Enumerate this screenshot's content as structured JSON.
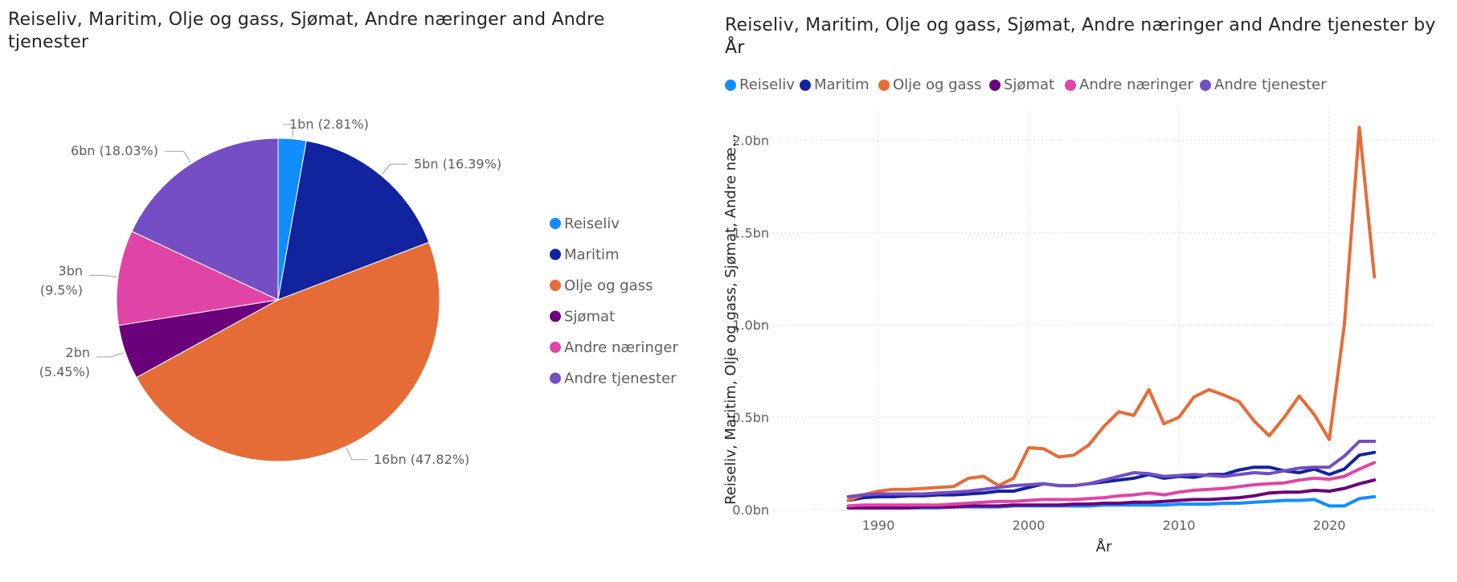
{
  "pie": {
    "title": "Reiseliv, Maritim, Olje og gass, Sjømat, Andre næringer and Andre tjenester"
  },
  "line": {
    "title": "Reiseliv, Maritim, Olje og gass, Sjømat, Andre næringer and Andre tjenester by År",
    "ylabel": "Reiseliv, Maritim, Olje og gass, Sjømat, Andre næ...",
    "xlabel": "År"
  },
  "colors": {
    "Reiseliv": "#118DFF",
    "Maritim": "#12239E",
    "Olje og gass": "#E66C37",
    "Sjømat": "#6B007B",
    "Andre næringer": "#E044A7",
    "Andre tjenester": "#744EC2"
  },
  "chart_data": [
    {
      "type": "pie",
      "title": "Reiseliv, Maritim, Olje og gass, Sjømat, Andre næringer and Andre tjenester",
      "legend_position": "right",
      "slices": [
        {
          "name": "Reiseliv",
          "percent": 2.81,
          "label_value": "1bn",
          "label_pct": "(2.81%)"
        },
        {
          "name": "Maritim",
          "percent": 16.39,
          "label_value": "5bn",
          "label_pct": "(16.39%)"
        },
        {
          "name": "Olje og gass",
          "percent": 47.82,
          "label_value": "16bn",
          "label_pct": "(47.82%)"
        },
        {
          "name": "Sjømat",
          "percent": 5.45,
          "label_value": "2bn",
          "label_pct": "(5.45%)"
        },
        {
          "name": "Andre næringer",
          "percent": 9.5,
          "label_value": "3bn",
          "label_pct": "(9.5%)"
        },
        {
          "name": "Andre tjenester",
          "percent": 18.03,
          "label_value": "6bn",
          "label_pct": "(18.03%)"
        }
      ]
    },
    {
      "type": "line",
      "title": "Reiseliv, Maritim, Olje og gass, Sjømat, Andre næringer and Andre tjenester by År",
      "xlabel": "År",
      "ylabel": "Reiseliv, Maritim, Olje og gass, Sjømat, Andre næ...",
      "xlim": [
        1983,
        2027
      ],
      "ylim": [
        0,
        2.15
      ],
      "xticks": [
        1990,
        2000,
        2010,
        2020
      ],
      "yticks": [
        0,
        0.5,
        1.0,
        1.5,
        2.0
      ],
      "ytick_labels": [
        "0.0bn",
        "0.5bn",
        "1.0bn",
        "1.5bn",
        "2.0bn"
      ],
      "grid": true,
      "legend_position": "top-left",
      "x": [
        1988,
        1989,
        1990,
        1991,
        1992,
        1993,
        1994,
        1995,
        1996,
        1997,
        1998,
        1999,
        2000,
        2001,
        2002,
        2003,
        2004,
        2005,
        2006,
        2007,
        2008,
        2009,
        2010,
        2011,
        2012,
        2013,
        2014,
        2015,
        2016,
        2017,
        2018,
        2019,
        2020,
        2021,
        2022,
        2023
      ],
      "series": [
        {
          "name": "Reiseliv",
          "values": [
            0.01,
            0.01,
            0.01,
            0.01,
            0.01,
            0.01,
            0.01,
            0.015,
            0.015,
            0.015,
            0.015,
            0.02,
            0.02,
            0.02,
            0.02,
            0.02,
            0.02,
            0.025,
            0.025,
            0.025,
            0.025,
            0.025,
            0.03,
            0.03,
            0.03,
            0.035,
            0.035,
            0.04,
            0.045,
            0.05,
            0.05,
            0.055,
            0.02,
            0.02,
            0.06,
            0.07
          ]
        },
        {
          "name": "Maritim",
          "values": [
            0.05,
            0.065,
            0.07,
            0.07,
            0.075,
            0.075,
            0.08,
            0.08,
            0.085,
            0.09,
            0.1,
            0.1,
            0.12,
            0.14,
            0.13,
            0.13,
            0.14,
            0.15,
            0.16,
            0.17,
            0.19,
            0.17,
            0.18,
            0.175,
            0.19,
            0.19,
            0.215,
            0.23,
            0.23,
            0.21,
            0.2,
            0.22,
            0.19,
            0.22,
            0.295,
            0.31
          ]
        },
        {
          "name": "Olje og gass",
          "values": [
            0.05,
            0.08,
            0.1,
            0.11,
            0.11,
            0.115,
            0.12,
            0.125,
            0.17,
            0.18,
            0.13,
            0.17,
            0.335,
            0.33,
            0.285,
            0.295,
            0.35,
            0.45,
            0.53,
            0.51,
            0.65,
            0.465,
            0.5,
            0.61,
            0.65,
            0.62,
            0.585,
            0.48,
            0.4,
            0.5,
            0.615,
            0.515,
            0.38,
            1.0,
            2.07,
            1.26
          ]
        },
        {
          "name": "Sjømat",
          "values": [
            0.01,
            0.01,
            0.01,
            0.01,
            0.01,
            0.015,
            0.015,
            0.015,
            0.02,
            0.02,
            0.02,
            0.025,
            0.025,
            0.025,
            0.025,
            0.03,
            0.03,
            0.035,
            0.035,
            0.04,
            0.04,
            0.045,
            0.05,
            0.055,
            0.055,
            0.06,
            0.065,
            0.075,
            0.09,
            0.095,
            0.095,
            0.105,
            0.1,
            0.115,
            0.14,
            0.16
          ]
        },
        {
          "name": "Andre næringer",
          "values": [
            0.02,
            0.025,
            0.025,
            0.025,
            0.025,
            0.025,
            0.025,
            0.03,
            0.035,
            0.04,
            0.045,
            0.045,
            0.05,
            0.055,
            0.055,
            0.055,
            0.06,
            0.065,
            0.075,
            0.08,
            0.09,
            0.08,
            0.095,
            0.105,
            0.11,
            0.115,
            0.125,
            0.135,
            0.14,
            0.145,
            0.16,
            0.17,
            0.165,
            0.18,
            0.22,
            0.255
          ]
        },
        {
          "name": "Andre tjenester",
          "values": [
            0.07,
            0.08,
            0.085,
            0.085,
            0.085,
            0.085,
            0.09,
            0.095,
            0.1,
            0.11,
            0.12,
            0.13,
            0.135,
            0.14,
            0.13,
            0.13,
            0.14,
            0.16,
            0.18,
            0.2,
            0.195,
            0.18,
            0.185,
            0.19,
            0.185,
            0.18,
            0.19,
            0.2,
            0.195,
            0.21,
            0.225,
            0.23,
            0.23,
            0.29,
            0.37,
            0.37
          ]
        }
      ]
    }
  ]
}
